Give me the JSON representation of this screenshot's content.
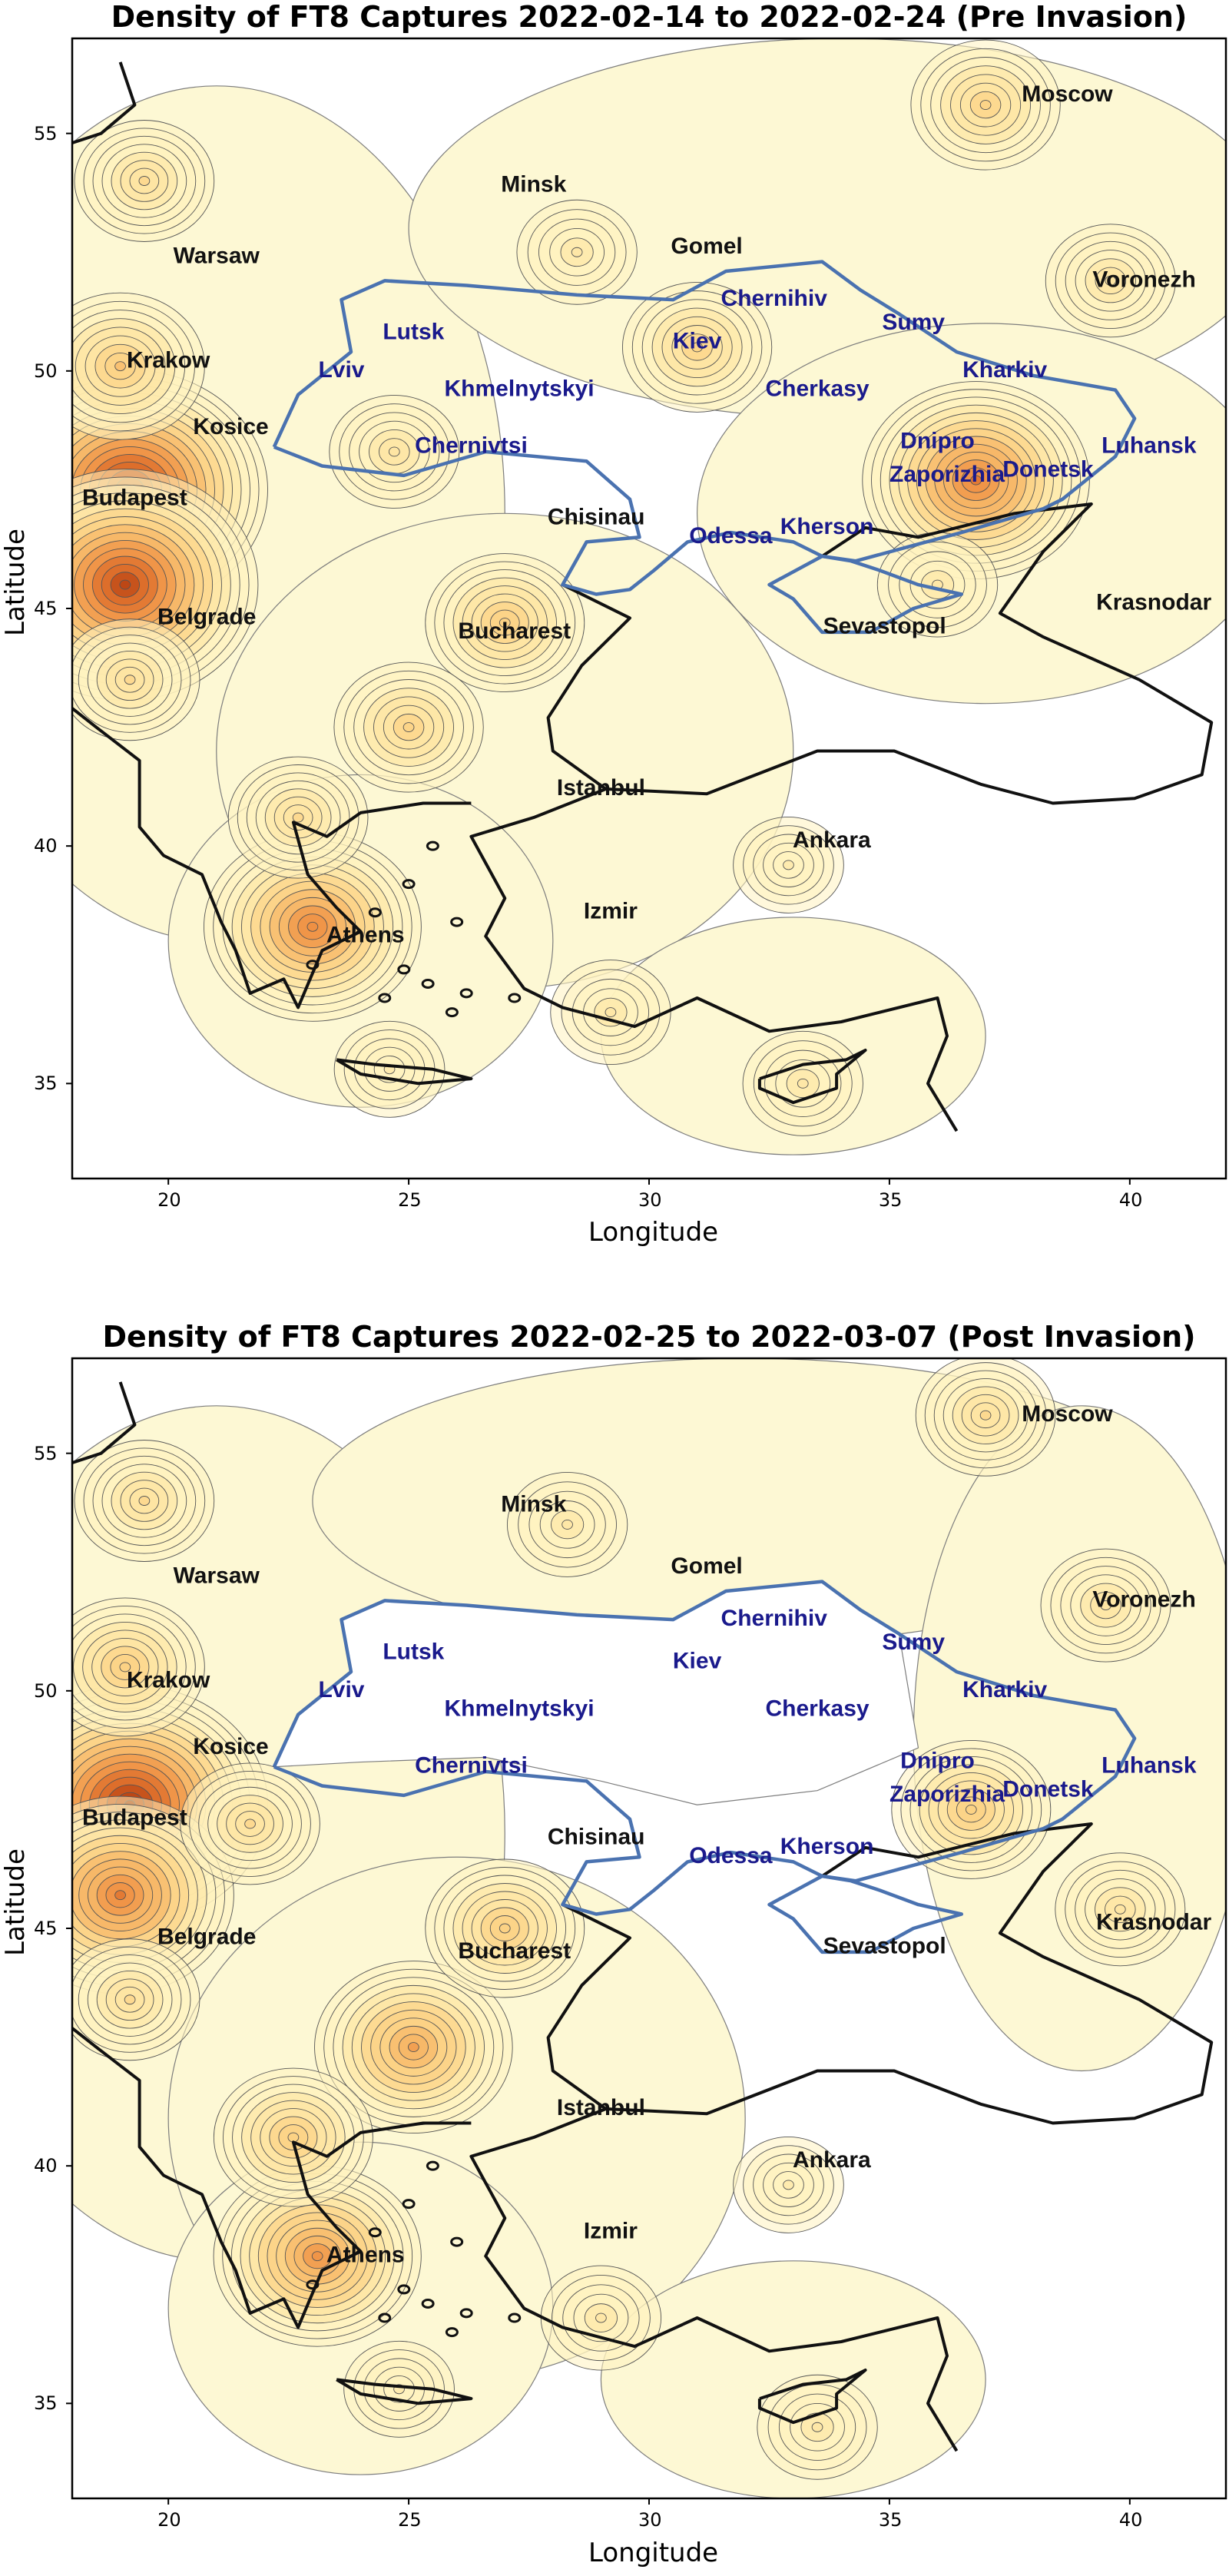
{
  "chart_data": [
    {
      "type": "heatmap",
      "title": "Density of FT8 Captures 2022-02-14 to 2022-02-24 (Pre Invasion)",
      "xlabel": "Longitude",
      "ylabel": "Latitude",
      "xlim": [
        18,
        42
      ],
      "ylim": [
        33,
        57
      ],
      "xticks": [
        "20",
        "25",
        "30",
        "35",
        "40"
      ],
      "yticks": [
        "35",
        "40",
        "45",
        "50",
        "55"
      ],
      "cities_black": [
        {
          "name": "Moscow",
          "lon": 38.7,
          "lat": 55.8
        },
        {
          "name": "Minsk",
          "lon": 27.6,
          "lat": 53.9
        },
        {
          "name": "Gomel",
          "lon": 31.2,
          "lat": 52.6
        },
        {
          "name": "Warsaw",
          "lon": 21.0,
          "lat": 52.4
        },
        {
          "name": "Voronezh",
          "lon": 40.3,
          "lat": 51.9
        },
        {
          "name": "Krakow",
          "lon": 20.0,
          "lat": 50.2
        },
        {
          "name": "Kosice",
          "lon": 21.3,
          "lat": 48.8
        },
        {
          "name": "Budapest",
          "lon": 19.3,
          "lat": 47.3
        },
        {
          "name": "Chisinau",
          "lon": 28.9,
          "lat": 46.9
        },
        {
          "name": "Krasnodar",
          "lon": 40.5,
          "lat": 45.1
        },
        {
          "name": "Belgrade",
          "lon": 20.8,
          "lat": 44.8
        },
        {
          "name": "Bucharest",
          "lon": 27.2,
          "lat": 44.5
        },
        {
          "name": "Sevastopol",
          "lon": 34.9,
          "lat": 44.6
        },
        {
          "name": "Istanbul",
          "lon": 29.0,
          "lat": 41.2
        },
        {
          "name": "Ankara",
          "lon": 33.8,
          "lat": 40.1
        },
        {
          "name": "Izmir",
          "lon": 29.2,
          "lat": 38.6
        },
        {
          "name": "Athens",
          "lon": 24.1,
          "lat": 38.1
        }
      ],
      "cities_blue": [
        {
          "name": "Chernihiv",
          "lon": 32.6,
          "lat": 51.5
        },
        {
          "name": "Sumy",
          "lon": 35.5,
          "lat": 51.0
        },
        {
          "name": "Lutsk",
          "lon": 25.1,
          "lat": 50.8
        },
        {
          "name": "Kiev",
          "lon": 31.0,
          "lat": 50.6
        },
        {
          "name": "Kharkiv",
          "lon": 37.4,
          "lat": 50.0
        },
        {
          "name": "Lviv",
          "lon": 23.6,
          "lat": 50.0
        },
        {
          "name": "Khmelnytskyi",
          "lon": 27.3,
          "lat": 49.6
        },
        {
          "name": "Cherkasy",
          "lon": 33.5,
          "lat": 49.6
        },
        {
          "name": "Dnipro",
          "lon": 36.0,
          "lat": 48.5
        },
        {
          "name": "Luhansk",
          "lon": 40.4,
          "lat": 48.4
        },
        {
          "name": "Chernivtsi",
          "lon": 26.3,
          "lat": 48.4
        },
        {
          "name": "Zaporizhia",
          "lon": 36.2,
          "lat": 47.8
        },
        {
          "name": "Donetsk",
          "lon": 38.3,
          "lat": 47.9
        },
        {
          "name": "Kherson",
          "lon": 33.7,
          "lat": 46.7
        },
        {
          "name": "Odessa",
          "lon": 31.7,
          "lat": 46.5
        }
      ],
      "density_peaks": [
        {
          "lon": 19.2,
          "lat": 47.5,
          "level": 1.0
        },
        {
          "lon": 19.1,
          "lat": 45.5,
          "level": 0.95
        },
        {
          "lon": 36.8,
          "lat": 47.7,
          "level": 0.75
        },
        {
          "lon": 23.0,
          "lat": 38.3,
          "level": 0.7
        },
        {
          "lon": 19.0,
          "lat": 50.1,
          "level": 0.45
        },
        {
          "lon": 27.0,
          "lat": 44.7,
          "level": 0.4
        },
        {
          "lon": 25.0,
          "lat": 42.5,
          "level": 0.35
        },
        {
          "lon": 37.0,
          "lat": 55.6,
          "level": 0.35
        },
        {
          "lon": 31.0,
          "lat": 50.5,
          "level": 0.35
        },
        {
          "lon": 22.7,
          "lat": 40.6,
          "level": 0.3
        },
        {
          "lon": 19.5,
          "lat": 54.0,
          "level": 0.3
        },
        {
          "lon": 39.6,
          "lat": 51.9,
          "level": 0.25
        },
        {
          "lon": 24.7,
          "lat": 48.3,
          "level": 0.25
        },
        {
          "lon": 29.2,
          "lat": 36.5,
          "level": 0.2
        },
        {
          "lon": 33.2,
          "lat": 35.0,
          "level": 0.2
        },
        {
          "lon": 36.0,
          "lat": 45.5,
          "level": 0.2
        },
        {
          "lon": 32.9,
          "lat": 39.6,
          "level": 0.15
        },
        {
          "lon": 24.6,
          "lat": 35.3,
          "level": 0.15
        },
        {
          "lon": 28.5,
          "lat": 52.5,
          "level": 0.2
        },
        {
          "lon": 19.2,
          "lat": 43.5,
          "level": 0.3
        }
      ]
    },
    {
      "type": "heatmap",
      "title": "Density of FT8 Captures 2022-02-25 to 2022-03-07 (Post Invasion)",
      "xlabel": "Longitude",
      "ylabel": "Latitude",
      "xlim": [
        18,
        42
      ],
      "ylim": [
        33,
        57
      ],
      "xticks": [
        "20",
        "25",
        "30",
        "35",
        "40"
      ],
      "yticks": [
        "35",
        "40",
        "45",
        "50",
        "55"
      ],
      "cities_black": [
        {
          "name": "Moscow",
          "lon": 38.7,
          "lat": 55.8
        },
        {
          "name": "Minsk",
          "lon": 27.6,
          "lat": 53.9
        },
        {
          "name": "Gomel",
          "lon": 31.2,
          "lat": 52.6
        },
        {
          "name": "Warsaw",
          "lon": 21.0,
          "lat": 52.4
        },
        {
          "name": "Voronezh",
          "lon": 40.3,
          "lat": 51.9
        },
        {
          "name": "Krakow",
          "lon": 20.0,
          "lat": 50.2
        },
        {
          "name": "Kosice",
          "lon": 21.3,
          "lat": 48.8
        },
        {
          "name": "Budapest",
          "lon": 19.3,
          "lat": 47.3
        },
        {
          "name": "Chisinau",
          "lon": 28.9,
          "lat": 46.9
        },
        {
          "name": "Krasnodar",
          "lon": 40.5,
          "lat": 45.1
        },
        {
          "name": "Belgrade",
          "lon": 20.8,
          "lat": 44.8
        },
        {
          "name": "Bucharest",
          "lon": 27.2,
          "lat": 44.5
        },
        {
          "name": "Sevastopol",
          "lon": 34.9,
          "lat": 44.6
        },
        {
          "name": "Istanbul",
          "lon": 29.0,
          "lat": 41.2
        },
        {
          "name": "Ankara",
          "lon": 33.8,
          "lat": 40.1
        },
        {
          "name": "Izmir",
          "lon": 29.2,
          "lat": 38.6
        },
        {
          "name": "Athens",
          "lon": 24.1,
          "lat": 38.1
        }
      ],
      "cities_blue": [
        {
          "name": "Chernihiv",
          "lon": 32.6,
          "lat": 51.5
        },
        {
          "name": "Sumy",
          "lon": 35.5,
          "lat": 51.0
        },
        {
          "name": "Lutsk",
          "lon": 25.1,
          "lat": 50.8
        },
        {
          "name": "Kiev",
          "lon": 31.0,
          "lat": 50.6
        },
        {
          "name": "Kharkiv",
          "lon": 37.4,
          "lat": 50.0
        },
        {
          "name": "Lviv",
          "lon": 23.6,
          "lat": 50.0
        },
        {
          "name": "Khmelnytskyi",
          "lon": 27.3,
          "lat": 49.6
        },
        {
          "name": "Cherkasy",
          "lon": 33.5,
          "lat": 49.6
        },
        {
          "name": "Dnipro",
          "lon": 36.0,
          "lat": 48.5
        },
        {
          "name": "Luhansk",
          "lon": 40.4,
          "lat": 48.4
        },
        {
          "name": "Chernivtsi",
          "lon": 26.3,
          "lat": 48.4
        },
        {
          "name": "Zaporizhia",
          "lon": 36.2,
          "lat": 47.8
        },
        {
          "name": "Donetsk",
          "lon": 38.3,
          "lat": 47.9
        },
        {
          "name": "Kherson",
          "lon": 33.7,
          "lat": 46.7
        },
        {
          "name": "Odessa",
          "lon": 31.7,
          "lat": 46.5
        }
      ],
      "density_peaks": [
        {
          "lon": 19.2,
          "lat": 47.6,
          "level": 1.0
        },
        {
          "lon": 19.0,
          "lat": 45.7,
          "level": 0.75
        },
        {
          "lon": 25.1,
          "lat": 42.5,
          "level": 0.6
        },
        {
          "lon": 23.1,
          "lat": 38.1,
          "level": 0.65
        },
        {
          "lon": 22.6,
          "lat": 40.6,
          "level": 0.4
        },
        {
          "lon": 27.0,
          "lat": 45.0,
          "level": 0.4
        },
        {
          "lon": 36.7,
          "lat": 47.5,
          "level": 0.4
        },
        {
          "lon": 19.1,
          "lat": 50.5,
          "level": 0.4
        },
        {
          "lon": 37.0,
          "lat": 55.8,
          "level": 0.3
        },
        {
          "lon": 21.7,
          "lat": 47.2,
          "level": 0.3
        },
        {
          "lon": 19.5,
          "lat": 54.0,
          "level": 0.3
        },
        {
          "lon": 39.8,
          "lat": 45.4,
          "level": 0.25
        },
        {
          "lon": 39.5,
          "lat": 51.8,
          "level": 0.25
        },
        {
          "lon": 29.0,
          "lat": 36.8,
          "level": 0.2
        },
        {
          "lon": 33.5,
          "lat": 34.5,
          "level": 0.2
        },
        {
          "lon": 24.8,
          "lat": 35.3,
          "level": 0.15
        },
        {
          "lon": 32.9,
          "lat": 39.6,
          "level": 0.15
        },
        {
          "lon": 28.3,
          "lat": 53.5,
          "level": 0.2
        },
        {
          "lon": 19.2,
          "lat": 43.5,
          "level": 0.3
        }
      ]
    }
  ]
}
